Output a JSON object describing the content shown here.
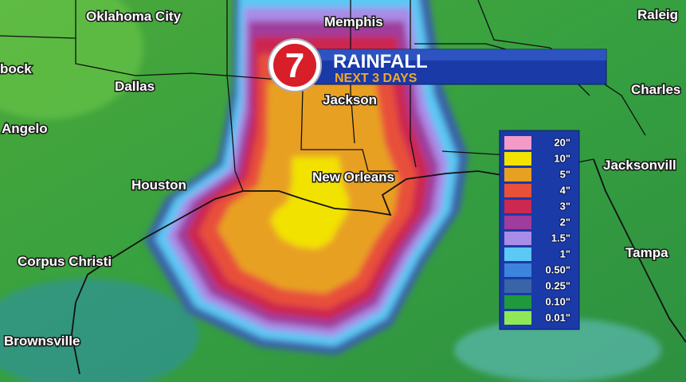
{
  "logo": "7",
  "title": "RAINFALL",
  "subtitle": "NEXT 3 DAYS",
  "cities": [
    "Oklahoma City",
    "Memphis",
    "Raleig",
    "bock",
    "Dallas",
    "Jackson",
    "Charles",
    "Angelo",
    "Houston",
    "New Orleans",
    "Jacksonvill",
    "Corpus Christi",
    "Tampa",
    "Brownsville"
  ],
  "legend": [
    {
      "label": "20\"",
      "color": "#f49ac8"
    },
    {
      "label": "10\"",
      "color": "#f2e200"
    },
    {
      "label": "5\"",
      "color": "#e8a022"
    },
    {
      "label": "4\"",
      "color": "#e8503a"
    },
    {
      "label": "3\"",
      "color": "#cc2850"
    },
    {
      "label": "2\"",
      "color": "#a03c9c"
    },
    {
      "label": "1.5\"",
      "color": "#a88ce8"
    },
    {
      "label": "1\"",
      "color": "#5cc8f4"
    },
    {
      "label": "0.50\"",
      "color": "#3c84dc"
    },
    {
      "label": "0.25\"",
      "color": "#3a64a8"
    },
    {
      "label": "0.10\"",
      "color": "#1e9a3c"
    },
    {
      "label": "0.01\"",
      "color": "#8ee858"
    }
  ]
}
